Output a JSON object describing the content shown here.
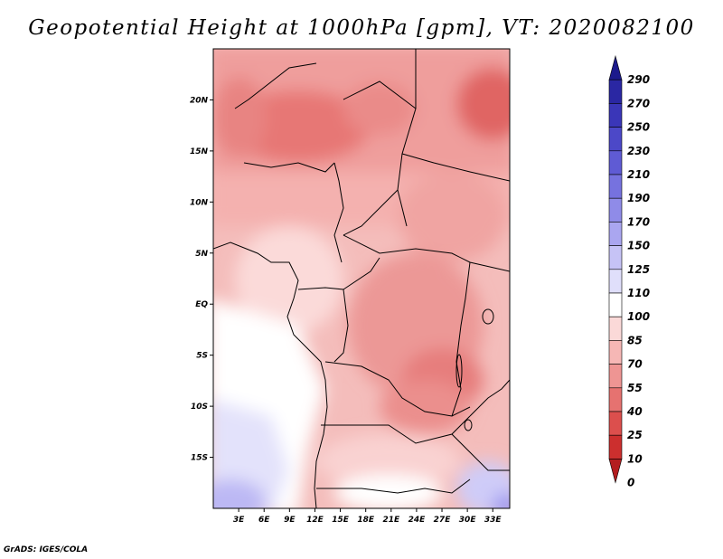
{
  "title": "Geopotential Height at 1000hPa [gpm], VT: 2020082100",
  "credit": "GrADS: IGES/COLA",
  "map": {
    "lon_range": [
      0,
      35
    ],
    "lat_range": [
      -20,
      25
    ],
    "x_ticks": [
      "3E",
      "6E",
      "9E",
      "12E",
      "15E",
      "18E",
      "21E",
      "24E",
      "27E",
      "30E",
      "33E"
    ],
    "x_tick_values": [
      3,
      6,
      9,
      12,
      15,
      18,
      21,
      24,
      27,
      30,
      33
    ],
    "y_ticks": [
      "20N",
      "15N",
      "10N",
      "5N",
      "EQ",
      "5S",
      "10S",
      "15S"
    ],
    "y_tick_values": [
      20,
      15,
      10,
      5,
      0,
      -5,
      -10,
      -15
    ]
  },
  "colorbar": {
    "labels": [
      "290",
      "270",
      "250",
      "230",
      "210",
      "190",
      "170",
      "150",
      "125",
      "110",
      "100",
      "85",
      "70",
      "55",
      "40",
      "25",
      "10",
      "0"
    ],
    "colors": [
      "#1c1a8c",
      "#2a27a3",
      "#3a36b8",
      "#4c48c8",
      "#5f5bd4",
      "#7672df",
      "#8f8be8",
      "#aaa6f0",
      "#c6c3f6",
      "#e0dffb",
      "#ffffff",
      "#fbd9d8",
      "#f6b7b5",
      "#ee9593",
      "#e67270",
      "#dc4f4d",
      "#cc2f2e",
      "#b31d1f"
    ]
  }
}
